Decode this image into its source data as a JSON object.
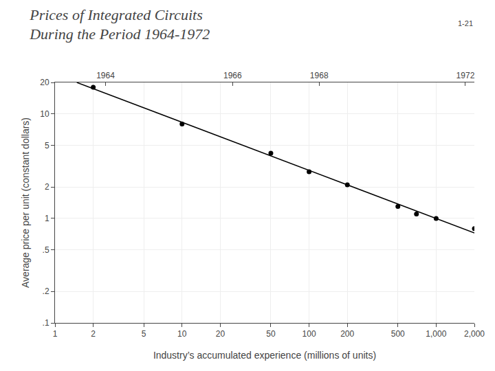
{
  "chart_data": {
    "type": "scatter",
    "title": "Prices of Integrated Circuits\nDuring the Period 1964-1972",
    "annotations": [
      {
        "text": "1-21"
      }
    ],
    "xlabel": "Industry’s accumulated experience (millions of units)",
    "ylabel": "Average price per unit (constant dollars)",
    "log": true,
    "grid": true,
    "series": [
      {
        "type": "scatter",
        "marker": "circle",
        "color": "black",
        "x": [
          2,
          10,
          50,
          100,
          200,
          500,
          700,
          1000,
          2000
        ],
        "values": [
          18.0,
          8.0,
          4.2,
          2.8,
          2.1,
          1.3,
          1.1,
          1.0,
          0.8
        ]
      },
      {
        "type": "line",
        "line_style": "solid",
        "color": "black",
        "x": [
          1.485,
          2000
        ],
        "values": [
          20,
          0.726
        ]
      }
    ],
    "xlim": [
      1,
      2000
    ],
    "xticks": [
      1,
      2,
      5,
      10,
      20,
      50,
      100,
      200,
      500,
      {
        "value": 1000,
        "label": "1,000"
      },
      {
        "value": 2000,
        "label": "2,000"
      }
    ],
    "ylim": [
      0.1,
      20
    ],
    "yticks": [
      {
        "value": 0.1,
        "label": ".1"
      },
      {
        "value": 0.2,
        "label": ".2"
      },
      {
        "value": 0.5,
        "label": ".5"
      },
      1,
      2,
      5,
      10,
      20
    ],
    "x2lim": [
      1,
      2000
    ],
    "x2ticks": [
      {
        "value": 2.5,
        "label": "1964"
      },
      {
        "value": 25,
        "label": "1966"
      },
      {
        "value": 120,
        "label": "1968"
      },
      {
        "value": 1700,
        "label": "1972"
      }
    ]
  }
}
